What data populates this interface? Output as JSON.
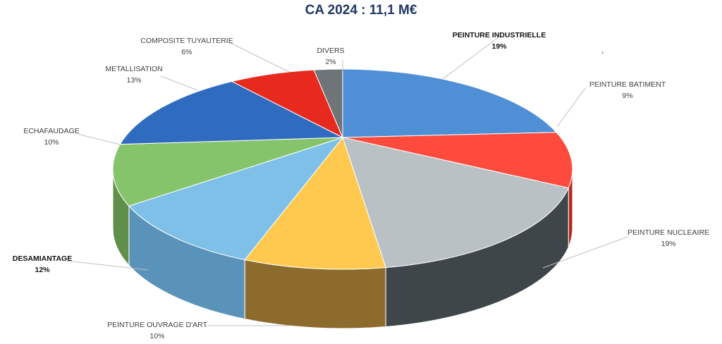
{
  "chart_data": {
    "type": "pie",
    "style": "3d",
    "title": "CA 2024 : 11,1 M€",
    "slices": [
      {
        "label": "PEINTURE INDUSTRIELLE",
        "value": 19,
        "pct": "19%",
        "color": "#4f8fd6"
      },
      {
        "label": "PEINTURE BATIMENT",
        "value": 9,
        "pct": "9%",
        "color": "#ff4b3e"
      },
      {
        "label": "PEINTURE NUCLEAIRE",
        "value": 19,
        "pct": "19%",
        "color": "#b9c1c4"
      },
      {
        "label": "PEINTURE OUVRAGE D'ART",
        "value": 10,
        "pct": "10%",
        "color": "#ffc94f"
      },
      {
        "label": "DESAMIANTAGE",
        "value": 12,
        "pct": "12%",
        "color": "#7ec0e8"
      },
      {
        "label": "ECHAFAUDAGE",
        "value": 10,
        "pct": "10%",
        "color": "#86c46c"
      },
      {
        "label": "METALLISATION",
        "value": 13,
        "pct": "13%",
        "color": "#2f6cc0"
      },
      {
        "label": "COMPOSITE TUYAUTERIE",
        "value": 6,
        "pct": "6%",
        "color": "#e82a1e"
      },
      {
        "label": "DIVERS",
        "value": 2,
        "pct": "2%",
        "color": "#6e7477"
      }
    ],
    "side_colors": [
      "#2f5f9e",
      "#b02a20",
      "#3f4649",
      "#8d6b2c",
      "#5a93b9",
      "#5f8f4a",
      "#234f8f",
      "#a81d14",
      "#4a4f52"
    ],
    "legend": "none"
  },
  "stray_mark": ","
}
